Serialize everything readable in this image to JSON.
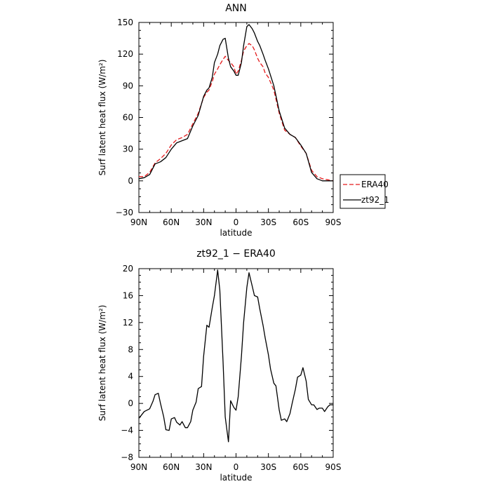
{
  "chart_data": [
    {
      "type": "line",
      "title": "ANN",
      "xlabel": "latitude",
      "ylabel": "Surf latent heat flux (W/m²)",
      "xlim": [
        90,
        -90
      ],
      "ylim": [
        -30,
        150
      ],
      "xticks": [
        90,
        60,
        30,
        0,
        -30,
        -60,
        -90
      ],
      "xtick_labels": [
        "90N",
        "60N",
        "30N",
        "0",
        "30S",
        "60S",
        "90S"
      ],
      "yticks": [
        -30,
        0,
        30,
        60,
        90,
        120,
        150
      ],
      "ytick_labels": [
        "−30",
        "0",
        "30",
        "60",
        "90",
        "120",
        "150"
      ],
      "legend_position": "right",
      "series": [
        {
          "name": "ERA40",
          "color": "#e41a1c",
          "dash": "dashed",
          "x": [
            90,
            85,
            80,
            75,
            70,
            65,
            60,
            55,
            50,
            45,
            40,
            35,
            30,
            27,
            25,
            22,
            20,
            17,
            15,
            12,
            10,
            7,
            5,
            2,
            0,
            -2,
            -5,
            -7,
            -10,
            -12,
            -15,
            -17,
            -20,
            -22,
            -25,
            -27,
            -30,
            -35,
            -40,
            -45,
            -50,
            -55,
            -60,
            -65,
            -70,
            -75,
            -80,
            -85,
            -90
          ],
          "values": [
            4,
            4,
            8,
            17,
            21,
            26,
            34,
            39,
            41,
            44,
            54,
            64,
            79,
            84,
            86,
            94,
            101,
            106,
            110,
            115,
            118,
            114,
            112,
            108,
            101,
            104,
            114,
            123,
            128,
            130,
            128,
            124,
            116,
            112,
            108,
            102,
            98,
            86,
            64,
            48,
            44,
            41,
            33,
            26,
            10,
            4,
            2,
            1,
            0
          ]
        },
        {
          "name": "zt92_1",
          "color": "#000000",
          "dash": "solid",
          "x": [
            90,
            85,
            80,
            75,
            70,
            65,
            60,
            55,
            50,
            45,
            40,
            35,
            30,
            27,
            25,
            22,
            20,
            17,
            15,
            12,
            10,
            7,
            5,
            2,
            0,
            -2,
            -5,
            -7,
            -10,
            -12,
            -15,
            -17,
            -20,
            -22,
            -25,
            -27,
            -30,
            -35,
            -40,
            -45,
            -50,
            -55,
            -60,
            -65,
            -70,
            -75,
            -80,
            -85,
            -90
          ],
          "values": [
            2,
            3,
            6,
            16,
            18,
            22,
            30,
            36,
            38,
            40,
            52,
            62,
            80,
            86,
            88,
            98,
            112,
            120,
            128,
            134,
            135,
            116,
            108,
            104,
            100,
            100,
            112,
            128,
            146,
            148,
            144,
            140,
            132,
            128,
            120,
            114,
            106,
            90,
            66,
            50,
            44,
            41,
            34,
            26,
            8,
            2,
            0,
            0,
            0
          ]
        }
      ]
    },
    {
      "type": "line",
      "title": "zt92_1 − ERA40",
      "xlabel": "latitude",
      "ylabel": "Surf latent heat flux (W/m²)",
      "xlim": [
        90,
        -90
      ],
      "ylim": [
        -8,
        20
      ],
      "xticks": [
        90,
        60,
        30,
        0,
        -30,
        -60,
        -90
      ],
      "xtick_labels": [
        "90N",
        "60N",
        "30N",
        "0",
        "30S",
        "60S",
        "90S"
      ],
      "yticks": [
        -8,
        -4,
        0,
        4,
        8,
        12,
        16,
        20
      ],
      "ytick_labels": [
        "−8",
        "−4",
        "0",
        "4",
        "8",
        "12",
        "16",
        "20"
      ],
      "series": [
        {
          "color": "#000000",
          "x": [
            90,
            85,
            80,
            77,
            75,
            72,
            70,
            67,
            65,
            62,
            60,
            57,
            55,
            52,
            50,
            47,
            45,
            42,
            40,
            37,
            35,
            32,
            30,
            27,
            25,
            22,
            20,
            17,
            15,
            12,
            10,
            7,
            5,
            2,
            0,
            -2,
            -5,
            -7,
            -10,
            -12,
            -15,
            -17,
            -20,
            -22,
            -25,
            -27,
            -30,
            -32,
            -35,
            -37,
            -40,
            -42,
            -45,
            -47,
            -50,
            -52,
            -55,
            -57,
            -60,
            -62,
            -65,
            -67,
            -70,
            -72,
            -75,
            -77,
            -80,
            -82,
            -85,
            -87,
            -90
          ],
          "values": [
            -2.2,
            -1.2,
            -0.8,
            0.3,
            1.3,
            1.5,
            0,
            -2,
            -3.9,
            -4,
            -2.3,
            -2.1,
            -2.8,
            -3.2,
            -2.7,
            -3.6,
            -3.6,
            -2.7,
            -1.0,
            0.2,
            2.2,
            2.5,
            7.0,
            11.6,
            11.3,
            14.2,
            16.0,
            19.8,
            16.8,
            6.2,
            -2.0,
            -5.7,
            0.4,
            -0.6,
            -1.0,
            1.0,
            7.0,
            12.0,
            17.2,
            19.4,
            17.4,
            16.0,
            15.8,
            14.0,
            11.6,
            9.7,
            7.2,
            5.1,
            3.0,
            2.6,
            -1.0,
            -2.5,
            -2.3,
            -2.7,
            -1.5,
            0,
            2.1,
            3.9,
            4.2,
            5.3,
            3.3,
            0.6,
            -0.2,
            -0.2,
            -0.9,
            -0.7,
            -0.7,
            -1.2,
            -0.5,
            -0.2,
            -0.2
          ]
        }
      ]
    }
  ]
}
